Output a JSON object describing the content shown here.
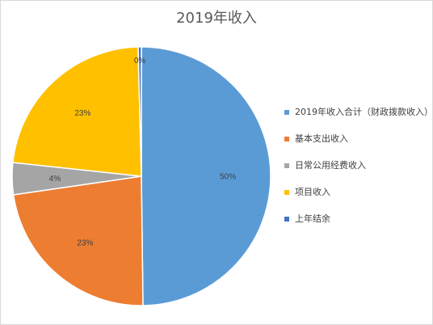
{
  "chart_data": {
    "type": "pie",
    "title": "2019年收入",
    "legend_position": "right",
    "slices": [
      {
        "name": "2019年收入合计（财政拨款收入）",
        "value": 50,
        "label": "50%",
        "color": "#5b9bd5"
      },
      {
        "name": "基本支出收入",
        "value": 23,
        "label": "23%",
        "color": "#ed7d31"
      },
      {
        "name": "日常公用经费收入",
        "value": 4,
        "label": "4%",
        "color": "#a5a5a5"
      },
      {
        "name": "项目收入",
        "value": 23,
        "label": "23%",
        "color": "#ffc000"
      },
      {
        "name": "上年结余",
        "value": 0.4,
        "label": "0%",
        "color": "#4472c4"
      }
    ]
  }
}
